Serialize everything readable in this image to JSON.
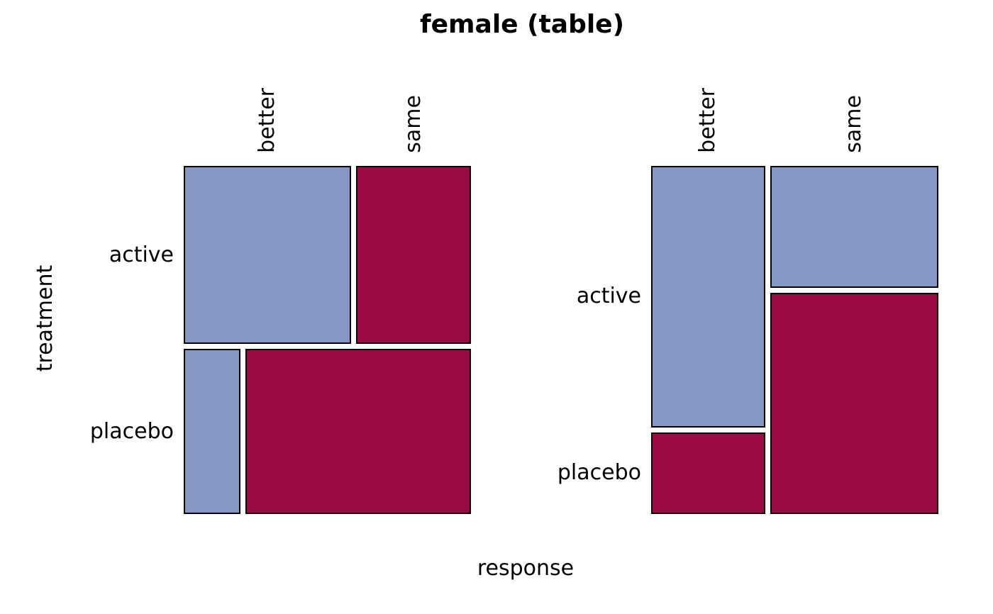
{
  "title": "female (table)",
  "x_axis_label": "response",
  "y_axis_label": "treatment",
  "colors": {
    "category1_fill": "#8597C5",
    "category2_fill": "#9A0B44",
    "cell_stroke": "#000000",
    "background": "#FFFFFF",
    "text": "#000000"
  },
  "chart_data": {
    "type": "mosaic",
    "title": "female (table)",
    "xlabel": "response",
    "ylabel": "treatment",
    "row_variable": "treatment",
    "col_variable": "response",
    "rows": [
      "active",
      "placebo"
    ],
    "cols": [
      "better",
      "same"
    ],
    "counts": [
      [
        16,
        11
      ],
      [
        5,
        20
      ]
    ],
    "row_totals": [
      27,
      25
    ],
    "col_totals": [
      21,
      31
    ],
    "total": 52,
    "legend": "none",
    "grid": "off",
    "panels": [
      {
        "id": "left-panel",
        "split_first": "treatment",
        "color_by": "response"
      },
      {
        "id": "right-panel",
        "split_first": "response",
        "color_by": "treatment"
      }
    ]
  }
}
